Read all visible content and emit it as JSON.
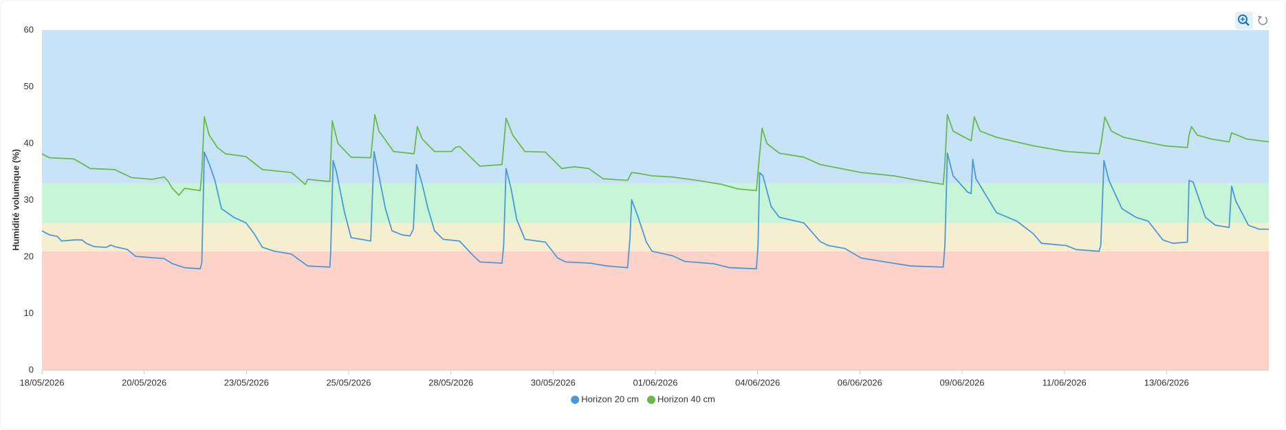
{
  "chart_data": {
    "type": "line",
    "ylabel": "Humidité volumique (%)",
    "ylim": [
      0,
      60
    ],
    "yticks": [
      0,
      10,
      20,
      30,
      40,
      50,
      60
    ],
    "xlim": [
      0,
      30
    ],
    "xticks": [
      {
        "value": 0,
        "label": "18/05/2026"
      },
      {
        "value": 2.5,
        "label": "20/05/2026"
      },
      {
        "value": 5,
        "label": "23/05/2026"
      },
      {
        "value": 7.5,
        "label": "25/05/2026"
      },
      {
        "value": 10,
        "label": "28/05/2026"
      },
      {
        "value": 12.5,
        "label": "30/05/2026"
      },
      {
        "value": 15,
        "label": "01/06/2026"
      },
      {
        "value": 17.5,
        "label": "04/06/2026"
      },
      {
        "value": 20,
        "label": "06/06/2026"
      },
      {
        "value": 22.5,
        "label": "09/06/2026"
      },
      {
        "value": 25,
        "label": "11/06/2026"
      },
      {
        "value": 27.5,
        "label": "13/06/2026"
      }
    ],
    "bands": [
      {
        "from": 0,
        "to": 21,
        "color": "#fdd3c9"
      },
      {
        "from": 21,
        "to": 26,
        "color": "#f5eecf"
      },
      {
        "from": 26,
        "to": 33,
        "color": "#c8f5d8"
      },
      {
        "from": 33,
        "to": 60,
        "color": "#c6e3f8"
      }
    ],
    "series": [
      {
        "name": "Horizon 20 cm",
        "color": "#4a98d8",
        "x": [
          0,
          0.18,
          0.38,
          0.48,
          0.78,
          0.98,
          1.08,
          1.28,
          1.58,
          1.68,
          1.78,
          2.09,
          2.29,
          2.99,
          3.19,
          3.49,
          3.87,
          3.91,
          3.97,
          4.09,
          4.23,
          4.39,
          4.69,
          4.99,
          5.19,
          5.39,
          5.69,
          6.1,
          6.5,
          7.04,
          7.06,
          7.12,
          7.2,
          7.4,
          7.56,
          7.8,
          8.04,
          8.12,
          8.24,
          8.4,
          8.56,
          8.8,
          9.0,
          9.08,
          9.16,
          9.3,
          9.44,
          9.6,
          9.81,
          10.21,
          10.51,
          10.71,
          11.25,
          11.29,
          11.35,
          11.47,
          11.61,
          11.81,
          12.31,
          12.61,
          12.81,
          13.41,
          13.82,
          14.32,
          14.38,
          14.42,
          14.58,
          14.78,
          14.92,
          15.42,
          15.72,
          16.42,
          16.82,
          17.47,
          17.51,
          17.55,
          17.63,
          17.83,
          18.03,
          18.63,
          19.03,
          19.23,
          19.63,
          20.03,
          20.63,
          21.24,
          22.04,
          22.08,
          22.14,
          22.28,
          22.64,
          22.72,
          22.76,
          22.84,
          23.04,
          23.34,
          23.84,
          24.24,
          24.44,
          25.05,
          25.29,
          25.85,
          25.89,
          25.97,
          26.09,
          26.41,
          26.75,
          27.05,
          27.41,
          27.65,
          28.01,
          28.05,
          28.15,
          28.45,
          28.69,
          29.03,
          29.09,
          29.19,
          29.5,
          29.76,
          30
        ],
        "values": [
          24.6,
          23.9,
          23.6,
          22.8,
          23,
          23,
          22.4,
          21.8,
          21.7,
          22.1,
          21.8,
          21.3,
          20.1,
          19.7,
          18.8,
          18.1,
          17.9,
          19,
          38.5,
          36.4,
          33.5,
          28.5,
          27,
          26,
          24.1,
          21.7,
          21,
          20.5,
          18.4,
          18.2,
          20.5,
          37,
          35,
          27.8,
          23.4,
          23.1,
          22.8,
          38.6,
          34.3,
          28.5,
          24.6,
          23.9,
          23.7,
          24.9,
          36.3,
          32.8,
          28.5,
          24.6,
          23.1,
          22.8,
          20.5,
          19.1,
          18.9,
          22,
          35.6,
          32.1,
          26.6,
          23.1,
          22.6,
          19.8,
          19.1,
          18.9,
          18.4,
          18.1,
          23.4,
          30.1,
          27,
          22.6,
          21,
          20.2,
          19.2,
          18.8,
          18.1,
          17.9,
          22,
          34.9,
          34.3,
          28.9,
          27,
          26,
          22.7,
          22,
          21.5,
          19.8,
          19.1,
          18.4,
          18.2,
          22,
          38.3,
          34.3,
          31.4,
          31.2,
          37.2,
          33.8,
          31.4,
          27.8,
          26.3,
          24.1,
          22.4,
          22,
          21.3,
          21,
          22,
          37,
          33.5,
          28.5,
          27,
          26.3,
          23,
          22.4,
          22.6,
          33.5,
          33.2,
          27,
          25.6,
          25.2,
          32.5,
          29.9,
          25.6,
          24.9,
          24.9
        ]
      },
      {
        "name": "Horizon 40 cm",
        "color": "#6bb84a",
        "x": [
          0,
          0.18,
          0.78,
          1.18,
          1.78,
          2.19,
          2.69,
          2.99,
          3.09,
          3.19,
          3.35,
          3.49,
          3.87,
          3.91,
          3.97,
          4.09,
          4.29,
          4.49,
          4.99,
          5.39,
          6.1,
          6.44,
          6.5,
          7.04,
          7.1,
          7.24,
          7.56,
          8.04,
          8.14,
          8.24,
          8.6,
          9.1,
          9.18,
          9.3,
          9.6,
          10.01,
          10.11,
          10.21,
          10.71,
          11.25,
          11.35,
          11.51,
          11.81,
          12.31,
          12.71,
          13.01,
          13.37,
          13.72,
          14.32,
          14.42,
          14.62,
          14.92,
          15.42,
          16.02,
          16.62,
          17.02,
          17.47,
          17.53,
          17.61,
          17.73,
          18.03,
          18.63,
          19.03,
          20.03,
          20.83,
          21.44,
          22.04,
          22.08,
          22.14,
          22.28,
          22.64,
          22.72,
          22.8,
          22.94,
          23.34,
          24.24,
          25.05,
          25.85,
          25.91,
          25.99,
          26.15,
          26.45,
          27.45,
          28.01,
          28.05,
          28.11,
          28.25,
          28.59,
          29.03,
          29.09,
          29.46,
          30
        ],
        "values": [
          38.2,
          37.5,
          37.3,
          35.6,
          35.4,
          34,
          33.7,
          34.1,
          33.3,
          32.1,
          30.9,
          32.1,
          31.7,
          35,
          44.7,
          41.5,
          39.3,
          38.2,
          37.7,
          35.4,
          34.9,
          32.8,
          33.7,
          33.3,
          44,
          40,
          37.6,
          37.5,
          45.1,
          42.2,
          38.6,
          38.2,
          43,
          40.8,
          38.6,
          38.6,
          39.3,
          39.5,
          36,
          36.3,
          44.5,
          41.5,
          38.6,
          38.5,
          35.6,
          35.9,
          35.6,
          33.8,
          33.5,
          34.9,
          34.7,
          34.3,
          34.1,
          33.5,
          32.8,
          32,
          31.7,
          36.7,
          42.7,
          40,
          38.3,
          37.6,
          36.3,
          34.9,
          34.3,
          33.5,
          32.8,
          36.4,
          45.1,
          42.2,
          40.8,
          40.5,
          44.7,
          42.2,
          41.1,
          39.6,
          38.6,
          38.2,
          40.5,
          44.7,
          42.2,
          41.1,
          39.6,
          39.3,
          41.5,
          43,
          41.5,
          40.8,
          40.3,
          41.9,
          40.8,
          40.3
        ]
      }
    ]
  }
}
